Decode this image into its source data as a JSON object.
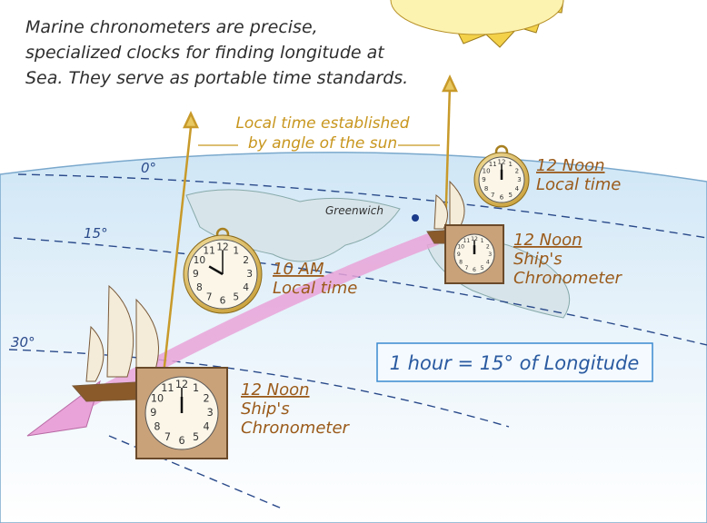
{
  "intro": {
    "lines": [
      "Marine chronometers are precise,",
      "specialized clocks for finding longitude at",
      "Sea. They serve as portable time standards."
    ]
  },
  "sun_note": {
    "lines": [
      "Local time established",
      "by angle of the sun"
    ]
  },
  "meridians": [
    "0°",
    "15°",
    "30°"
  ],
  "place": "Greenwich",
  "labels": [
    {
      "lines": [
        "12 Noon",
        "Local time"
      ]
    },
    {
      "lines": [
        "12 Noon",
        "Ship's",
        "Chronometer"
      ]
    },
    {
      "lines": [
        "10 AM",
        "Local time"
      ]
    },
    {
      "lines": [
        "12 Noon",
        "Ship's",
        "Chronometer"
      ]
    }
  ],
  "dial_numerals": [
    "12",
    "1",
    "2",
    "3",
    "4",
    "5",
    "6",
    "7",
    "8",
    "9",
    "10",
    "11"
  ],
  "formula": "1 hour = 15° of Longitude"
}
